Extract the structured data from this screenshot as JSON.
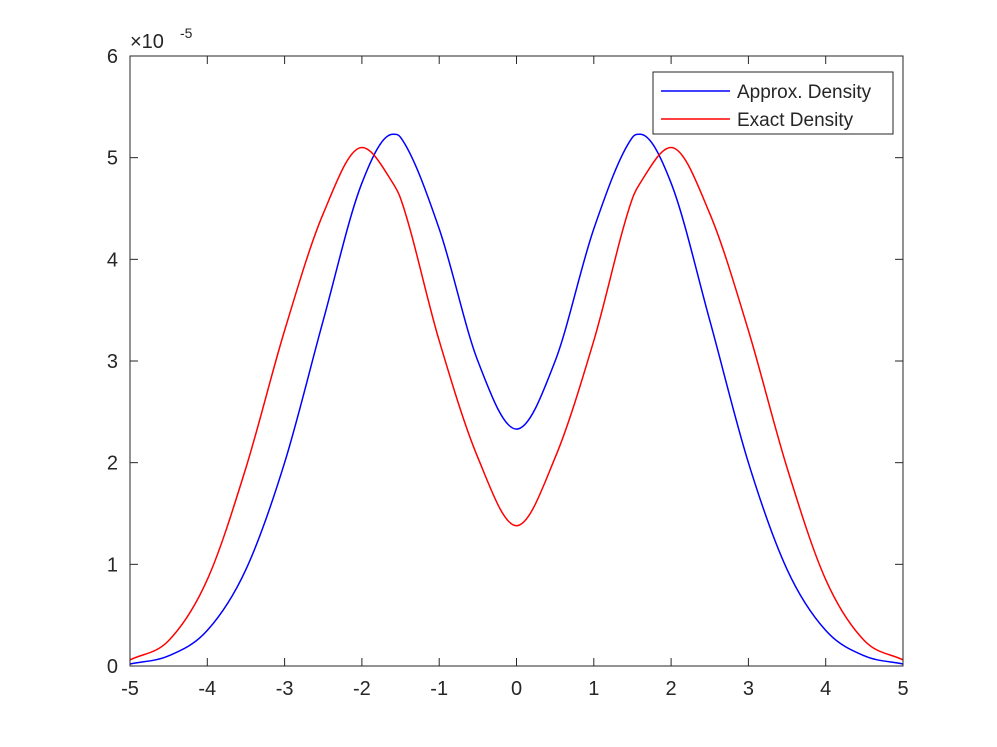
{
  "chart_data": {
    "type": "line",
    "title": "",
    "xlabel": "",
    "ylabel": "",
    "xlim": [
      -5,
      5
    ],
    "ylim": [
      0,
      6
    ],
    "y_exponent_label": "×10",
    "y_exponent_power": "-5",
    "x_ticks": [
      -5,
      -4,
      -3,
      -2,
      -1,
      0,
      1,
      2,
      3,
      4,
      5
    ],
    "x_tick_labels": [
      "-5",
      "-4",
      "-3",
      "-2",
      "-1",
      "0",
      "1",
      "2",
      "3",
      "4",
      "5"
    ],
    "y_ticks": [
      0,
      1,
      2,
      3,
      4,
      5,
      6
    ],
    "y_tick_labels": [
      "0",
      "1",
      "2",
      "3",
      "4",
      "5",
      "6"
    ],
    "grid": false,
    "legend_position": "top-right",
    "x": [
      -5,
      -4.5,
      -4,
      -3.5,
      -3,
      -2.5,
      -2,
      -1.6,
      -1.5,
      -1,
      -0.5,
      0,
      0.5,
      1,
      1.5,
      1.6,
      2,
      2.5,
      3,
      3.5,
      4,
      4.5,
      5
    ],
    "series": [
      {
        "name": "Approx. Density",
        "color": "#0000ff",
        "values": [
          0.02,
          0.1,
          0.35,
          0.95,
          2.0,
          3.4,
          4.75,
          5.23,
          5.2,
          4.3,
          3.0,
          2.33,
          3.0,
          4.3,
          5.2,
          5.23,
          4.75,
          3.4,
          2.0,
          0.95,
          0.35,
          0.1,
          0.02
        ]
      },
      {
        "name": "Exact Density",
        "color": "#ff0000",
        "values": [
          0.06,
          0.25,
          0.85,
          1.95,
          3.3,
          4.45,
          5.1,
          4.75,
          4.6,
          3.2,
          2.05,
          1.38,
          2.05,
          3.2,
          4.6,
          4.75,
          5.1,
          4.45,
          3.3,
          1.95,
          0.85,
          0.25,
          0.06
        ]
      }
    ]
  }
}
